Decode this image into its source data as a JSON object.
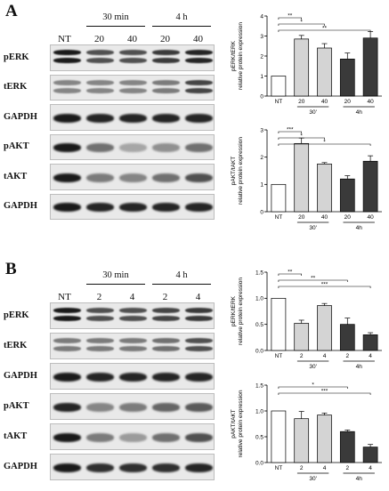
{
  "panels": [
    {
      "id": "A",
      "letter": "A",
      "lanes": [
        "NT",
        "20",
        "40",
        "20",
        "40"
      ],
      "time_groups": [
        {
          "label": "30 min",
          "lanes": [
            1,
            2
          ]
        },
        {
          "label": "4 h",
          "lanes": [
            3,
            4
          ]
        }
      ],
      "blots": [
        {
          "label": "pERK",
          "double": true,
          "intensity": [
            0.95,
            0.7,
            0.7,
            0.8,
            0.9
          ]
        },
        {
          "label": "tERK",
          "double": true,
          "intensity": [
            0.45,
            0.45,
            0.45,
            0.5,
            0.75
          ]
        },
        {
          "label": "GAPDH",
          "double": false,
          "intensity": [
            0.95,
            0.9,
            0.9,
            0.9,
            0.9
          ]
        },
        {
          "label": "pAKT",
          "double": false,
          "intensity": [
            0.95,
            0.55,
            0.3,
            0.4,
            0.55
          ]
        },
        {
          "label": "tAKT",
          "double": false,
          "intensity": [
            0.95,
            0.5,
            0.45,
            0.55,
            0.7
          ]
        },
        {
          "label": "GAPDH",
          "double": false,
          "intensity": [
            0.95,
            0.9,
            0.9,
            0.9,
            0.9
          ]
        }
      ]
    },
    {
      "id": "B",
      "letter": "B",
      "lanes": [
        "NT",
        "2",
        "4",
        "2",
        "4"
      ],
      "time_groups": [
        {
          "label": "30 min",
          "lanes": [
            1,
            2
          ]
        },
        {
          "label": "4 h",
          "lanes": [
            3,
            4
          ]
        }
      ],
      "blots": [
        {
          "label": "pERK",
          "double": true,
          "intensity": [
            0.95,
            0.7,
            0.7,
            0.75,
            0.8
          ]
        },
        {
          "label": "tERK",
          "double": true,
          "intensity": [
            0.5,
            0.5,
            0.5,
            0.55,
            0.7
          ]
        },
        {
          "label": "GAPDH",
          "double": false,
          "intensity": [
            0.95,
            0.9,
            0.9,
            0.9,
            0.9
          ]
        },
        {
          "label": "pAKT",
          "double": false,
          "intensity": [
            0.9,
            0.45,
            0.5,
            0.6,
            0.65
          ]
        },
        {
          "label": "tAKT",
          "double": false,
          "intensity": [
            0.95,
            0.5,
            0.35,
            0.55,
            0.7
          ]
        },
        {
          "label": "GAPDH",
          "double": false,
          "intensity": [
            0.95,
            0.85,
            0.85,
            0.85,
            0.9
          ]
        }
      ]
    }
  ],
  "chart_data": [
    {
      "id": "A-top",
      "type": "bar",
      "categories": [
        "NT",
        "20",
        "40",
        "20",
        "40"
      ],
      "group_labels": [
        "30'",
        "4h"
      ],
      "values": [
        1.0,
        2.85,
        2.4,
        1.85,
        2.9
      ],
      "errors": [
        0,
        0.18,
        0.22,
        0.3,
        0.32
      ],
      "colors": [
        "#ffffff",
        "#d4d4d4",
        "#d4d4d4",
        "#3a3a3a",
        "#3a3a3a"
      ],
      "ylabel": "pERK/tERK\nrelative protein expression",
      "ylim": [
        0,
        4
      ],
      "yticks": [
        0,
        1,
        2,
        3,
        4
      ],
      "significance": [
        {
          "from": 0,
          "to": 1,
          "label": "**"
        },
        {
          "from": 0,
          "to": 2,
          "label": "*"
        },
        {
          "from": 0,
          "to": 4,
          "label": "**"
        }
      ]
    },
    {
      "id": "A-bottom",
      "type": "bar",
      "categories": [
        "NT",
        "20",
        "40",
        "20",
        "40"
      ],
      "group_labels": [
        "30'",
        "4h"
      ],
      "values": [
        1.0,
        2.5,
        1.75,
        1.2,
        1.85
      ],
      "errors": [
        0,
        0.2,
        0.05,
        0.12,
        0.2
      ],
      "colors": [
        "#ffffff",
        "#d4d4d4",
        "#d4d4d4",
        "#3a3a3a",
        "#3a3a3a"
      ],
      "ylabel": "pAKT/tAKT\nrelative protein expression",
      "ylim": [
        0,
        3
      ],
      "yticks": [
        0,
        1,
        2,
        3
      ],
      "significance": [
        {
          "from": 0,
          "to": 1,
          "label": "***"
        },
        {
          "from": 0,
          "to": 2,
          "label": "*"
        },
        {
          "from": 0,
          "to": 4,
          "label": "*"
        }
      ]
    },
    {
      "id": "B-top",
      "type": "bar",
      "categories": [
        "NT",
        "2",
        "4",
        "2",
        "4"
      ],
      "group_labels": [
        "30'",
        "4h"
      ],
      "values": [
        1.0,
        0.52,
        0.86,
        0.5,
        0.3
      ],
      "errors": [
        0,
        0.06,
        0.04,
        0.12,
        0.04
      ],
      "colors": [
        "#ffffff",
        "#d4d4d4",
        "#d4d4d4",
        "#3a3a3a",
        "#3a3a3a"
      ],
      "ylabel": "pERK/tERK\nrelative protein expression",
      "ylim": [
        0,
        1.5
      ],
      "yticks": [
        0.0,
        0.5,
        1.0,
        1.5
      ],
      "significance": [
        {
          "from": 0,
          "to": 1,
          "label": "**"
        },
        {
          "from": 0,
          "to": 3,
          "label": "**"
        },
        {
          "from": 0,
          "to": 4,
          "label": "***"
        }
      ]
    },
    {
      "id": "B-bottom",
      "type": "bar",
      "categories": [
        "NT",
        "2",
        "4",
        "2",
        "4"
      ],
      "group_labels": [
        "30'",
        "4h"
      ],
      "values": [
        1.0,
        0.85,
        0.92,
        0.6,
        0.3
      ],
      "errors": [
        0,
        0.14,
        0.04,
        0.03,
        0.05
      ],
      "colors": [
        "#ffffff",
        "#d4d4d4",
        "#d4d4d4",
        "#3a3a3a",
        "#3a3a3a"
      ],
      "ylabel": "pAKT/tAKT\nrelative protein expression",
      "ylim": [
        0,
        1.5
      ],
      "yticks": [
        0.0,
        0.5,
        1.0,
        1.5
      ],
      "significance": [
        {
          "from": 0,
          "to": 3,
          "label": "*"
        },
        {
          "from": 0,
          "to": 4,
          "label": "***"
        }
      ]
    }
  ]
}
